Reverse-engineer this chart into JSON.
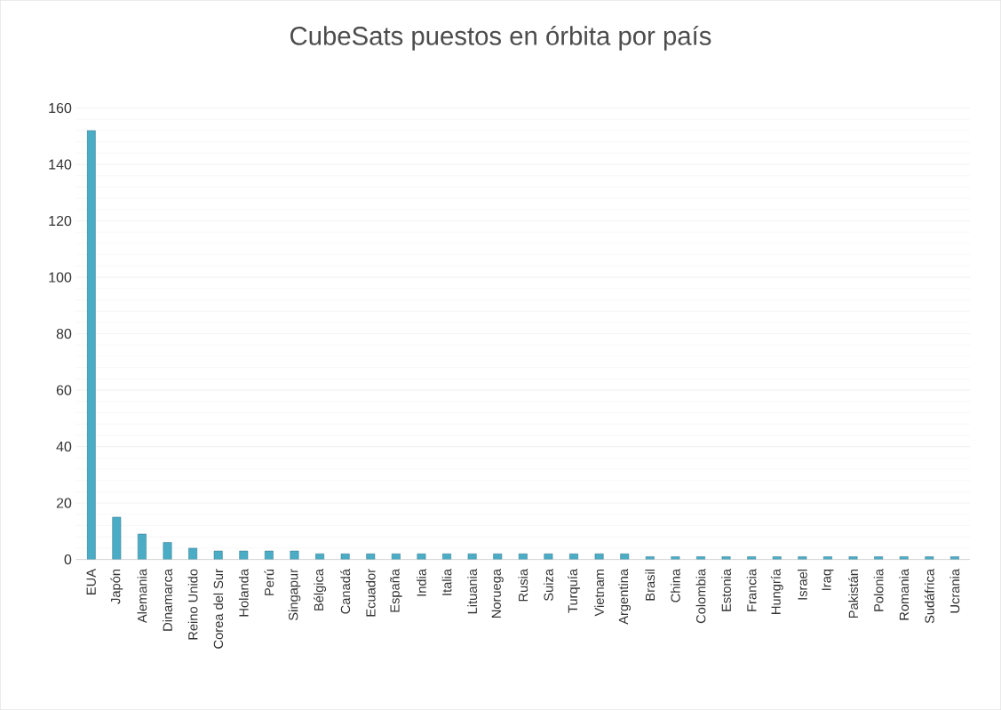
{
  "chart_data": {
    "type": "bar",
    "title": "CubeSats puestos en órbita por país",
    "categories": [
      "EUA",
      "Japón",
      "Alemania",
      "Dinamarca",
      "Reino Unido",
      "Corea del Sur",
      "Holanda",
      "Perú",
      "Singapur",
      "Bélgica",
      "Canadá",
      "Ecuador",
      "España",
      "India",
      "Italia",
      "Lituania",
      "Noruega",
      "Rusia",
      "Suiza",
      "Turquía",
      "Vietnam",
      "Argentina",
      "Brasil",
      "China",
      "Colombia",
      "Estonia",
      "Francia",
      "Hungría",
      "Israel",
      "Iraq",
      "Pakistán",
      "Polonia",
      "Romania",
      "Sudáfrica",
      "Ucrania"
    ],
    "values": [
      152,
      15,
      9,
      6,
      4,
      3,
      3,
      3,
      3,
      2,
      2,
      2,
      2,
      2,
      2,
      2,
      2,
      2,
      2,
      2,
      2,
      2,
      1,
      1,
      1,
      1,
      1,
      1,
      1,
      1,
      1,
      1,
      1,
      1,
      1
    ],
    "color": "#4bacc6",
    "ylim": [
      0,
      160
    ],
    "yticks": [
      0,
      20,
      40,
      60,
      80,
      100,
      120,
      140,
      160
    ],
    "grid": "y"
  }
}
